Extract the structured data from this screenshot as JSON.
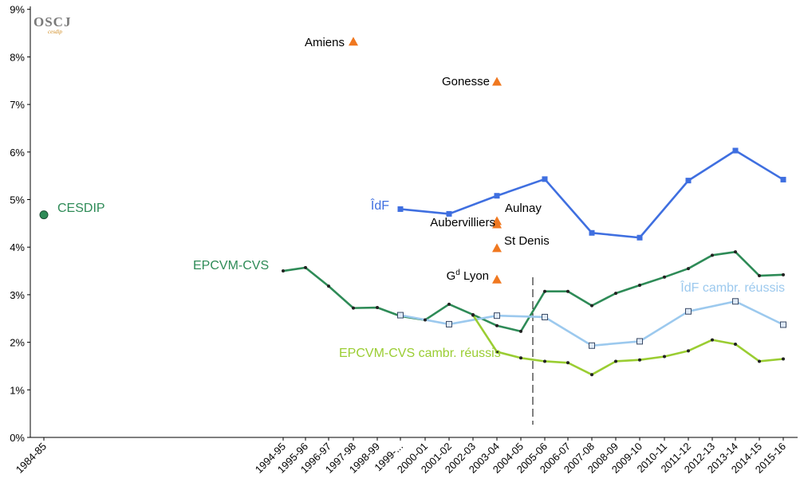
{
  "logo": {
    "text": "OSCJ",
    "subtext": "cesdip"
  },
  "chart_data": {
    "type": "line",
    "title": "",
    "xlabel": "",
    "ylabel": "",
    "ylim": [
      0,
      9
    ],
    "yticks": [
      "0%",
      "1%",
      "2%",
      "3%",
      "4%",
      "5%",
      "6%",
      "7%",
      "8%",
      "9%"
    ],
    "categories": [
      "1984-85",
      "1994-95",
      "1995-96",
      "1996-97",
      "1997-98",
      "1998-99",
      "1999-...",
      "2000-01",
      "2001-02",
      "2002-03",
      "2003-04",
      "2004-05",
      "2005-06",
      "2006-07",
      "2007-08",
      "2008-09",
      "2009-10",
      "2010-11",
      "2011-12",
      "2012-13",
      "2013-14",
      "2014-15",
      "2015-16"
    ],
    "grid": false,
    "legend": "none",
    "series": [
      {
        "name": "ÎdF",
        "color": "#3f6fe0",
        "marker": "filled-square",
        "points": [
          [
            "1999-...",
            4.8
          ],
          [
            "2001-02",
            4.7
          ],
          [
            "2003-04",
            5.08
          ],
          [
            "2005-06",
            5.43
          ],
          [
            "2007-08",
            4.3
          ],
          [
            "2009-10",
            4.2
          ],
          [
            "2011-12",
            5.4
          ],
          [
            "2013-14",
            6.03
          ],
          [
            "2015-16",
            5.42
          ]
        ]
      },
      {
        "name": "EPCVM-CVS",
        "color": "#2e8b57",
        "marker": "dot",
        "points": [
          [
            "1994-95",
            3.5
          ],
          [
            "1995-96",
            3.57
          ],
          [
            "1996-97",
            3.18
          ],
          [
            "1997-98",
            2.72
          ],
          [
            "1998-99",
            2.73
          ],
          [
            "1999-...",
            2.55
          ],
          [
            "2000-01",
            2.47
          ],
          [
            "2001-02",
            2.8
          ],
          [
            "2002-03",
            2.58
          ],
          [
            "2003-04",
            2.35
          ],
          [
            "2004-05",
            2.23
          ],
          [
            "2005-06",
            3.07
          ],
          [
            "2006-07",
            3.07
          ],
          [
            "2007-08",
            2.77
          ],
          [
            "2008-09",
            3.03
          ],
          [
            "2009-10",
            3.2
          ],
          [
            "2010-11",
            3.37
          ],
          [
            "2011-12",
            3.55
          ],
          [
            "2012-13",
            3.83
          ],
          [
            "2013-14",
            3.9
          ],
          [
            "2014-15",
            3.4
          ],
          [
            "2015-16",
            3.42
          ]
        ]
      },
      {
        "name": "ÎdF cambr. réussis",
        "color": "#9cc9ee",
        "marker": "open-square",
        "points": [
          [
            "1999-...",
            2.57
          ],
          [
            "2001-02",
            2.38
          ],
          [
            "2003-04",
            2.56
          ],
          [
            "2005-06",
            2.53
          ],
          [
            "2007-08",
            1.93
          ],
          [
            "2009-10",
            2.02
          ],
          [
            "2011-12",
            2.65
          ],
          [
            "2013-14",
            2.86
          ],
          [
            "2015-16",
            2.37
          ]
        ]
      },
      {
        "name": "EPCVM-CVS cambr. réussis",
        "color": "#9acd32",
        "marker": "dot",
        "points": [
          [
            "2002-03",
            2.57
          ],
          [
            "2003-04",
            1.8
          ],
          [
            "2004-05",
            1.67
          ],
          [
            "2005-06",
            1.6
          ],
          [
            "2006-07",
            1.57
          ],
          [
            "2007-08",
            1.32
          ],
          [
            "2008-09",
            1.6
          ],
          [
            "2009-10",
            1.63
          ],
          [
            "2010-11",
            1.7
          ],
          [
            "2011-12",
            1.82
          ],
          [
            "2012-13",
            2.05
          ],
          [
            "2013-14",
            1.96
          ],
          [
            "2014-15",
            1.6
          ],
          [
            "2015-16",
            1.65
          ]
        ]
      }
    ],
    "single_points": [
      {
        "label": "CESDIP",
        "category": "1984-85",
        "value": 4.68,
        "color": "#2e8b57",
        "marker": "circle"
      }
    ],
    "city_points": [
      {
        "label": "Amiens",
        "category": "1997-98",
        "value": 8.32,
        "color": "#f07820",
        "marker": "triangle"
      },
      {
        "label": "Gonesse",
        "category": "2003-04",
        "value": 7.48,
        "color": "#f07820",
        "marker": "triangle"
      },
      {
        "label": "Aulnay",
        "category": "2003-04",
        "value": 4.55,
        "color": "#f07820",
        "marker": "triangle"
      },
      {
        "label": "Aubervilliers",
        "category": "2003-04",
        "value": 4.48,
        "color": "#f07820",
        "marker": "triangle"
      },
      {
        "label": "St Denis",
        "category": "2003-04",
        "value": 3.98,
        "color": "#f07820",
        "marker": "triangle"
      },
      {
        "label": "Gd Lyon",
        "category": "2003-04",
        "value": 3.32,
        "color": "#f07820",
        "marker": "triangle"
      }
    ],
    "vertical_marker": {
      "between": [
        "2004-05",
        "2005-06"
      ],
      "style": "dashed"
    },
    "series_labels": [
      {
        "text": "CESDIP",
        "color": "#2e8b57"
      },
      {
        "text": "ÎdF",
        "color": "#3f6fe0"
      },
      {
        "text": "EPCVM-CVS",
        "color": "#2e8b57"
      },
      {
        "text": "ÎdF cambr. réussis",
        "color": "#9cc9ee"
      },
      {
        "text": "EPCVM-CVS cambr. réussis",
        "color": "#9acd32"
      }
    ]
  }
}
